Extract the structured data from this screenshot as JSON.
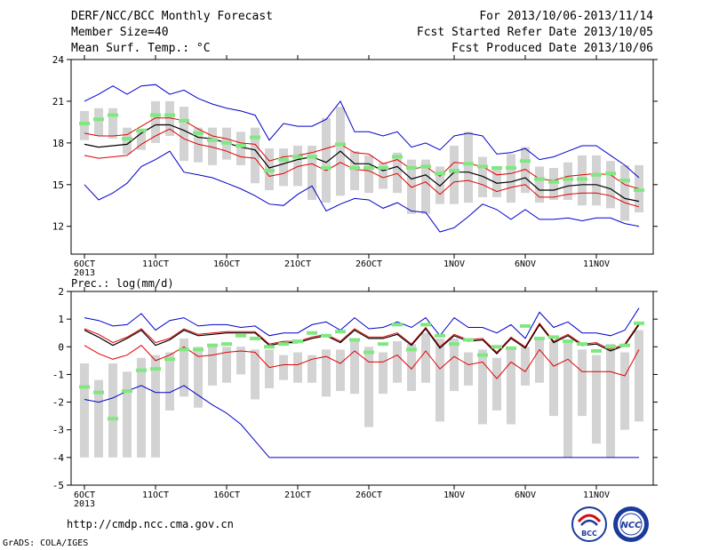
{
  "header": {
    "left": [
      "DERF/NCC/BCC Monthly Forecast",
      "Member Size=40",
      "Mean Surf. Temp.: °C"
    ],
    "right": [
      "For 2013/10/06-2013/11/14",
      "Fcst Started Refer Date 2013/10/05",
      "Fcst Produced Date 2013/10/06"
    ]
  },
  "footer": {
    "url": "http://cmdp.ncc.cma.gov.cn",
    "credit": "GrADS: COLA/IGES",
    "logo1_text": "BCC",
    "logo2_text": "NCC"
  },
  "colors": {
    "box": "#d3d3d3",
    "mean": "#80e880",
    "outer": "#0000cc",
    "inner": "#e00000",
    "median": "#000000"
  },
  "chart_data": [
    {
      "type": "line",
      "title": "Mean Surf. Temp.: °C",
      "x_tick_labels": [
        "6OCT",
        "11OCT",
        "16OCT",
        "21OCT",
        "26OCT",
        "1NOV",
        "6NOV",
        "11NOV"
      ],
      "x_tick_day_index": [
        0,
        5,
        10,
        15,
        20,
        26,
        31,
        36
      ],
      "x_year_label": "2013",
      "ylim": [
        10,
        24
      ],
      "y_ticks": [
        12,
        15,
        18,
        21,
        24
      ],
      "series": [
        {
          "name": "max",
          "values": [
            21.0,
            21.5,
            22.1,
            21.5,
            22.1,
            22.2,
            21.5,
            21.8,
            21.2,
            20.8,
            20.5,
            20.3,
            20.0,
            18.2,
            19.4,
            19.2,
            19.2,
            19.7,
            21.0,
            18.8,
            18.8,
            18.5,
            18.8,
            17.7,
            18.0,
            17.5,
            18.5,
            18.7,
            18.5,
            17.2,
            17.3,
            17.6,
            16.8,
            17.0,
            17.4,
            17.8,
            17.8,
            17.1,
            16.4,
            15.5
          ]
        },
        {
          "name": "upper",
          "values": [
            18.7,
            18.5,
            18.5,
            18.6,
            19.2,
            19.8,
            19.8,
            19.6,
            19.0,
            18.5,
            18.3,
            18.0,
            17.9,
            16.7,
            17.0,
            17.1,
            17.3,
            17.6,
            17.9,
            17.3,
            17.2,
            16.5,
            16.8,
            16.1,
            16.3,
            15.6,
            16.6,
            16.5,
            16.3,
            15.7,
            15.8,
            16.1,
            15.4,
            15.3,
            15.6,
            15.7,
            15.8,
            15.7,
            15.0,
            14.7
          ]
        },
        {
          "name": "median",
          "values": [
            17.9,
            17.7,
            17.8,
            17.9,
            18.7,
            19.3,
            19.3,
            18.9,
            18.4,
            18.3,
            18.0,
            17.7,
            17.5,
            16.2,
            16.5,
            16.8,
            17.0,
            16.6,
            17.4,
            16.5,
            16.5,
            16.0,
            16.3,
            15.4,
            15.7,
            14.9,
            15.9,
            15.9,
            15.6,
            15.1,
            15.2,
            15.5,
            14.6,
            14.6,
            14.9,
            15.0,
            15.0,
            14.7,
            14.0,
            13.8
          ]
        },
        {
          "name": "lower",
          "values": [
            17.1,
            16.9,
            17.0,
            17.1,
            17.9,
            18.5,
            19.0,
            18.3,
            17.9,
            17.7,
            17.4,
            17.0,
            16.9,
            15.6,
            15.8,
            16.3,
            16.5,
            16.0,
            16.6,
            16.1,
            16.0,
            15.5,
            15.8,
            14.8,
            15.2,
            14.3,
            15.2,
            15.3,
            15.0,
            14.5,
            14.8,
            15.0,
            14.1,
            14.1,
            14.3,
            14.4,
            14.4,
            14.2,
            13.7,
            13.4
          ]
        },
        {
          "name": "min",
          "values": [
            15.0,
            13.9,
            14.4,
            15.1,
            16.3,
            16.8,
            17.4,
            15.9,
            15.7,
            15.5,
            15.1,
            14.7,
            14.2,
            13.6,
            13.5,
            14.3,
            14.9,
            13.1,
            13.6,
            14.0,
            13.9,
            13.3,
            13.7,
            13.1,
            13.0,
            11.6,
            11.9,
            12.7,
            13.6,
            13.2,
            12.5,
            13.2,
            12.5,
            12.5,
            12.6,
            12.4,
            12.6,
            12.6,
            12.2,
            12.0
          ]
        },
        {
          "name": "box_top",
          "values": [
            20.3,
            20.5,
            20.5,
            19.1,
            18.8,
            21.0,
            21.0,
            20.6,
            19.1,
            19.1,
            19.1,
            18.8,
            19.1,
            17.6,
            17.6,
            17.8,
            17.8,
            19.8,
            20.6,
            17.4,
            17.1,
            16.6,
            17.3,
            16.8,
            16.8,
            16.3,
            17.8,
            18.8,
            17.0,
            16.1,
            17.2,
            17.7,
            16.3,
            16.2,
            16.6,
            17.1,
            17.1,
            16.7,
            16.4,
            16.4
          ]
        },
        {
          "name": "box_bottom",
          "values": [
            18.2,
            18.5,
            18.3,
            17.2,
            17.5,
            18.0,
            18.5,
            16.7,
            16.6,
            16.4,
            16.8,
            16.4,
            15.1,
            14.6,
            14.9,
            14.9,
            13.9,
            13.7,
            14.2,
            14.6,
            14.4,
            14.7,
            14.4,
            12.9,
            12.9,
            13.6,
            13.6,
            13.7,
            14.1,
            14.1,
            13.7,
            14.4,
            13.7,
            13.9,
            13.9,
            13.5,
            13.5,
            13.3,
            12.4,
            13.0
          ]
        },
        {
          "name": "ensemble_mean",
          "values": [
            19.4,
            19.7,
            20.0,
            18.3,
            18.9,
            20.0,
            20.0,
            19.6,
            18.7,
            18.2,
            18.0,
            17.8,
            18.4,
            16.0,
            16.8,
            17.0,
            17.0,
            16.2,
            17.9,
            16.2,
            16.2,
            16.2,
            17.0,
            16.2,
            16.3,
            15.8,
            16.0,
            16.5,
            16.3,
            16.2,
            16.2,
            16.7,
            15.4,
            15.2,
            15.4,
            15.4,
            15.7,
            15.8,
            15.3,
            14.6
          ]
        }
      ]
    },
    {
      "type": "line",
      "title": "Prec.: log(mm/d)",
      "x_tick_labels": [
        "6OCT",
        "11OCT",
        "16OCT",
        "21OCT",
        "26OCT",
        "1NOV",
        "6NOV",
        "11NOV"
      ],
      "x_tick_day_index": [
        0,
        5,
        10,
        15,
        20,
        26,
        31,
        36
      ],
      "x_year_label": "2013",
      "ylim": [
        -5,
        2
      ],
      "y_ticks": [
        -5,
        -4,
        -3,
        -2,
        -1,
        0,
        1,
        2
      ],
      "series": [
        {
          "name": "max",
          "values": [
            1.05,
            0.95,
            0.75,
            0.8,
            1.2,
            0.6,
            0.95,
            1.05,
            0.75,
            0.8,
            0.8,
            0.7,
            0.75,
            0.4,
            0.5,
            0.5,
            0.8,
            0.9,
            0.6,
            1.05,
            0.65,
            0.7,
            0.9,
            0.7,
            1.05,
            0.4,
            1.05,
            0.7,
            0.7,
            0.5,
            0.8,
            0.3,
            1.25,
            0.7,
            0.9,
            0.5,
            0.5,
            0.4,
            0.6,
            1.4
          ]
        },
        {
          "name": "upper",
          "values": [
            0.65,
            0.45,
            0.15,
            0.35,
            0.65,
            0.15,
            0.3,
            0.65,
            0.45,
            0.5,
            0.55,
            0.55,
            0.55,
            0.1,
            0.2,
            0.2,
            0.35,
            0.45,
            0.2,
            0.65,
            0.35,
            0.35,
            0.5,
            0.1,
            0.7,
            0.0,
            0.45,
            0.25,
            0.3,
            -0.2,
            0.35,
            0.0,
            0.85,
            0.2,
            0.45,
            0.1,
            0.15,
            -0.1,
            0.1,
            0.85
          ]
        },
        {
          "name": "median",
          "values": [
            0.6,
            0.35,
            0.05,
            0.3,
            0.6,
            0.05,
            0.25,
            0.6,
            0.4,
            0.45,
            0.5,
            0.5,
            0.5,
            0.05,
            0.15,
            0.15,
            0.3,
            0.4,
            0.15,
            0.6,
            0.3,
            0.3,
            0.45,
            0.05,
            0.65,
            -0.05,
            0.4,
            0.2,
            0.25,
            -0.25,
            0.3,
            -0.05,
            0.8,
            0.15,
            0.4,
            0.05,
            0.1,
            -0.15,
            0.05,
            0.8
          ]
        },
        {
          "name": "lower",
          "values": [
            0.05,
            -0.25,
            -0.45,
            -0.3,
            0.05,
            -0.5,
            -0.3,
            0.0,
            -0.35,
            -0.3,
            -0.2,
            -0.15,
            -0.2,
            -0.75,
            -0.65,
            -0.65,
            -0.45,
            -0.35,
            -0.6,
            -0.15,
            -0.55,
            -0.55,
            -0.3,
            -0.8,
            -0.15,
            -0.8,
            -0.35,
            -0.65,
            -0.55,
            -1.15,
            -0.55,
            -0.9,
            -0.1,
            -0.7,
            -0.45,
            -0.9,
            -0.9,
            -0.9,
            -1.05,
            -0.1
          ]
        },
        {
          "name": "min",
          "values": [
            -1.9,
            -2.0,
            -1.85,
            -1.6,
            -1.4,
            -1.65,
            -1.65,
            -1.4,
            -1.75,
            -2.1,
            -2.4,
            -2.8,
            -3.4,
            -4.0,
            -4.0,
            -4.0,
            -4.0,
            -4.0,
            -4.0,
            -4.0,
            -4.0,
            -4.0,
            -4.0,
            -4.0,
            -4.0,
            -4.0,
            -4.0,
            -4.0,
            -4.0,
            -4.0,
            -4.0,
            -4.0,
            -4.0,
            -4.0,
            -4.0,
            -4.0,
            -4.0,
            -4.0,
            -4.0,
            -4.0
          ]
        },
        {
          "name": "box_top",
          "values": [
            -0.6,
            -1.2,
            -0.6,
            -0.9,
            -0.4,
            -0.3,
            -0.2,
            0.3,
            0.0,
            0.1,
            0.0,
            0.0,
            -0.1,
            -0.1,
            -0.3,
            -0.2,
            -0.3,
            -0.1,
            -0.1,
            0.2,
            0.0,
            -0.2,
            0.2,
            0.1,
            0.5,
            0.3,
            0.3,
            -0.2,
            -0.1,
            -0.4,
            0.0,
            0.0,
            0.3,
            0.2,
            0.2,
            -0.1,
            -0.3,
            0.1,
            -0.2,
            0.6
          ]
        },
        {
          "name": "box_bottom",
          "values": [
            -4.0,
            -4.0,
            -4.0,
            -4.0,
            -4.0,
            -4.0,
            -2.3,
            -1.8,
            -2.2,
            -1.4,
            -1.3,
            -1.0,
            -1.9,
            -1.5,
            -1.2,
            -1.3,
            -1.3,
            -1.8,
            -1.6,
            -1.7,
            -2.9,
            -1.7,
            -1.3,
            -1.6,
            -1.3,
            -2.7,
            -1.6,
            -1.4,
            -2.8,
            -2.3,
            -2.8,
            -1.4,
            -1.3,
            -2.5,
            -4.0,
            -2.5,
            -3.5,
            -4.0,
            -3.0,
            -2.7
          ]
        },
        {
          "name": "ensemble_mean",
          "values": [
            -1.45,
            -1.65,
            -2.6,
            -1.6,
            -0.85,
            -0.8,
            -0.45,
            -0.1,
            -0.1,
            0.05,
            0.1,
            0.4,
            0.3,
            0.0,
            0.1,
            0.2,
            0.5,
            0.4,
            0.55,
            0.25,
            -0.2,
            0.1,
            0.8,
            -0.1,
            0.8,
            0.4,
            0.1,
            0.25,
            -0.3,
            0.0,
            -0.05,
            0.75,
            0.3,
            0.35,
            0.2,
            0.1,
            -0.15,
            0.0,
            0.05,
            0.85
          ]
        }
      ]
    }
  ]
}
